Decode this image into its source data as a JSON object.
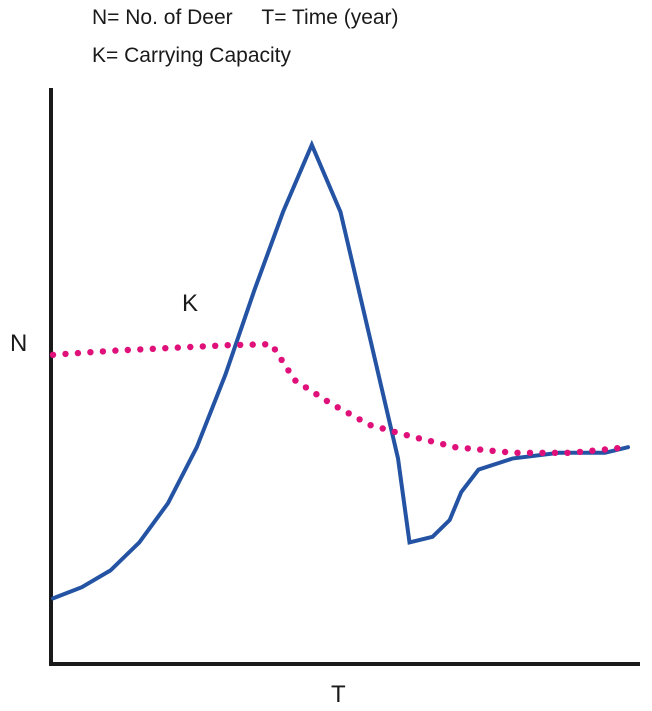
{
  "legend": {
    "line1": "N= No. of Deer     T= Time (year)",
    "line2": "K= Carrying Capacity"
  },
  "chart_data": {
    "type": "line",
    "title": "",
    "xlabel": "T",
    "ylabel": "N",
    "xlim": [
      0,
      100
    ],
    "ylim": [
      0,
      100
    ],
    "grid": false,
    "annotations": [
      {
        "text": "K",
        "series": "carrying_capacity"
      }
    ],
    "series": [
      {
        "id": "deer_population",
        "color": "#2453a4",
        "style": "solid",
        "x": [
          0,
          5,
          10,
          15,
          20,
          25,
          30,
          35,
          40,
          45,
          50,
          55,
          60,
          62,
          66,
          69,
          71,
          74,
          80,
          88,
          96,
          100
        ],
        "y": [
          11,
          13,
          16,
          21,
          28,
          38,
          51,
          66,
          80,
          92,
          80,
          58,
          36,
          21,
          22,
          25,
          30,
          34,
          36,
          37,
          37,
          38
        ]
      },
      {
        "id": "carrying_capacity",
        "color": "#e0107a",
        "style": "dotted",
        "x": [
          0,
          10,
          20,
          30,
          38,
          42,
          48,
          55,
          62,
          70,
          80,
          90,
          100
        ],
        "y": [
          54.5,
          55.2,
          55.7,
          56.2,
          56.4,
          50,
          46,
          42,
          40,
          38,
          37,
          37,
          38
        ]
      }
    ]
  }
}
